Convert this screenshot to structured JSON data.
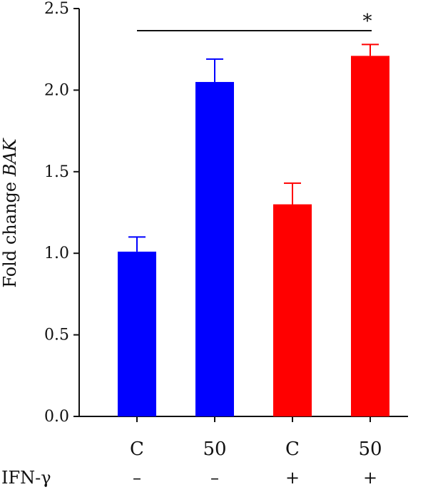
{
  "chart_data": {
    "type": "bar",
    "categories": [
      "C",
      "50",
      "C",
      "50"
    ],
    "values": [
      1.01,
      2.05,
      1.3,
      2.21
    ],
    "errors": [
      0.09,
      0.14,
      0.13,
      0.07
    ],
    "colors": [
      "#0000ff",
      "#0000ff",
      "#ff0000",
      "#ff0000"
    ],
    "ylabel_prefix": "Fold change ",
    "ylabel_gene": "BAK",
    "ylim": [
      0,
      2.5
    ],
    "yticks": [
      "0.0",
      "0.5",
      "1.0",
      "1.5",
      "2.0",
      "2.5"
    ],
    "row_label": "IFN-γ",
    "row_values": [
      "–",
      "–",
      "+",
      "+"
    ],
    "significance": {
      "from": 0,
      "to": 3,
      "label": "*"
    },
    "grid": false
  }
}
